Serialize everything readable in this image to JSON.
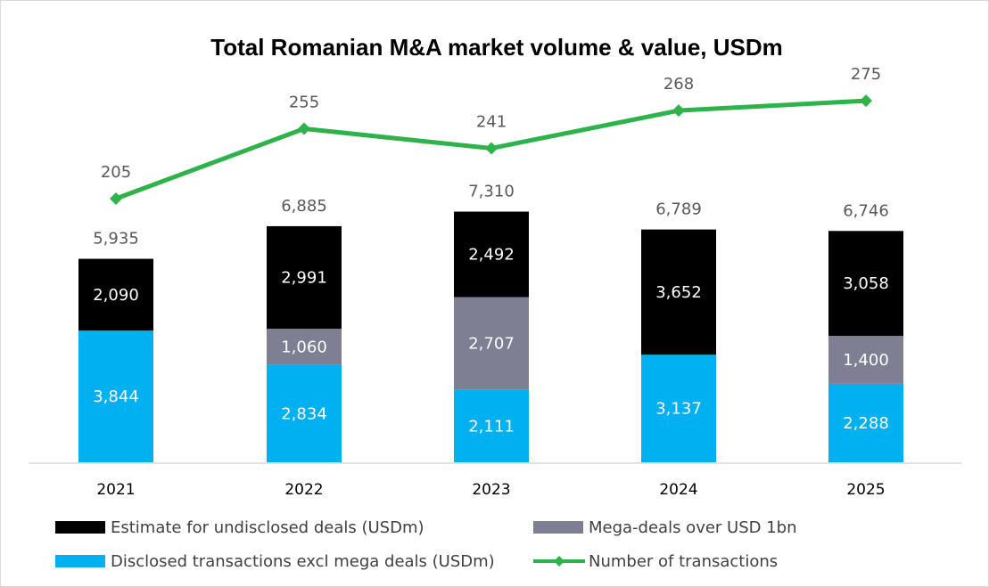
{
  "chart_data": {
    "type": "bar",
    "stacked": true,
    "title": "Total Romanian M&A market volume & value, USDm",
    "categories": [
      "2021",
      "2022",
      "2023",
      "2024",
      "2025"
    ],
    "series": [
      {
        "name": "Disclosed transactions excl mega deals (USDm)",
        "color": "#00b0f0",
        "values": [
          3844,
          2834,
          2111,
          3137,
          2288
        ],
        "labels": [
          "3,844",
          "2,834",
          "2,111",
          "3,137",
          "2,288"
        ]
      },
      {
        "name": "Mega-deals over USD 1bn",
        "color": "#7f7f94",
        "values": [
          0,
          1060,
          2707,
          0,
          1400
        ],
        "labels": [
          "",
          "1,060",
          "2,707",
          "",
          "1,400"
        ]
      },
      {
        "name": "Estimate for undisclosed deals (USDm)",
        "color": "#000000",
        "values": [
          2090,
          2991,
          2492,
          3652,
          3058
        ],
        "labels": [
          "2,090",
          "2,991",
          "2,492",
          "3,652",
          "3,058"
        ]
      }
    ],
    "totals": [
      5935,
      6885,
      7310,
      6789,
      6746
    ],
    "total_labels": [
      "5,935",
      "6,885",
      "7,310",
      "6,789",
      "6,746"
    ],
    "line_series": {
      "name": "Number of transactions",
      "color": "#2db34a",
      "values": [
        205,
        255,
        241,
        268,
        275
      ]
    },
    "legend": [
      {
        "name": "Estimate for undisclosed deals (USDm)",
        "kind": "box",
        "color": "#000000"
      },
      {
        "name": "Mega-deals over USD 1bn",
        "kind": "box",
        "color": "#7f7f94"
      },
      {
        "name": "Disclosed transactions excl mega deals (USDm)",
        "kind": "box",
        "color": "#00b0f0"
      },
      {
        "name": "Number of transactions",
        "kind": "line",
        "color": "#2db34a"
      }
    ],
    "legend_position": "bottom",
    "grid": false
  }
}
